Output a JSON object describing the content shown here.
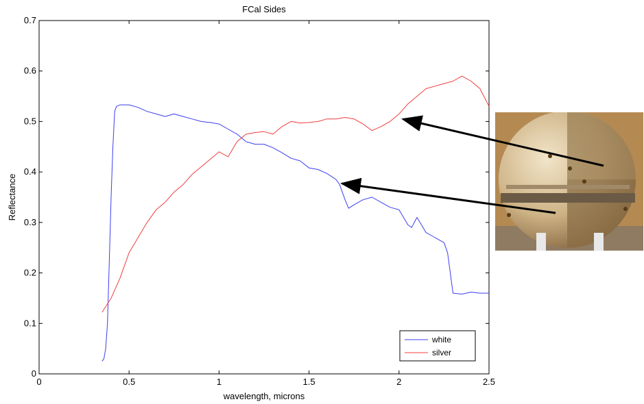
{
  "chart_data": {
    "type": "line",
    "title": "FCal Sides",
    "xlabel": "wavelength, microns",
    "ylabel": "Reflectance",
    "xlim": [
      0,
      2.5
    ],
    "ylim": [
      0,
      0.7
    ],
    "xticks": [
      "0",
      "0.5",
      "1",
      "1.5",
      "2",
      "2.5"
    ],
    "yticks": [
      "0",
      "0.1",
      "0.2",
      "0.3",
      "0.4",
      "0.5",
      "0.6",
      "0.7"
    ],
    "grid": false,
    "legend_position": "bottom-right",
    "series": [
      {
        "name": "white",
        "color": "#3c3cf0",
        "x": [
          0.35,
          0.36,
          0.37,
          0.38,
          0.39,
          0.4,
          0.41,
          0.42,
          0.43,
          0.45,
          0.5,
          0.55,
          0.6,
          0.65,
          0.7,
          0.75,
          0.8,
          0.85,
          0.9,
          0.95,
          1.0,
          1.05,
          1.1,
          1.15,
          1.2,
          1.25,
          1.3,
          1.35,
          1.4,
          1.45,
          1.5,
          1.55,
          1.6,
          1.65,
          1.67,
          1.7,
          1.72,
          1.75,
          1.8,
          1.85,
          1.9,
          1.95,
          2.0,
          2.05,
          2.07,
          2.1,
          2.15,
          2.2,
          2.25,
          2.27,
          2.3,
          2.35,
          2.4,
          2.45,
          2.5
        ],
        "values": [
          0.025,
          0.03,
          0.05,
          0.1,
          0.22,
          0.35,
          0.45,
          0.52,
          0.53,
          0.533,
          0.533,
          0.528,
          0.52,
          0.515,
          0.51,
          0.515,
          0.51,
          0.505,
          0.5,
          0.498,
          0.495,
          0.485,
          0.475,
          0.46,
          0.455,
          0.455,
          0.448,
          0.438,
          0.427,
          0.422,
          0.408,
          0.405,
          0.397,
          0.385,
          0.375,
          0.345,
          0.328,
          0.335,
          0.345,
          0.35,
          0.34,
          0.33,
          0.325,
          0.295,
          0.29,
          0.31,
          0.28,
          0.27,
          0.26,
          0.24,
          0.16,
          0.158,
          0.162,
          0.16,
          0.16
        ]
      },
      {
        "name": "silver",
        "color": "#f03c3c",
        "x": [
          0.35,
          0.4,
          0.45,
          0.5,
          0.55,
          0.6,
          0.65,
          0.7,
          0.75,
          0.8,
          0.85,
          0.9,
          0.95,
          1.0,
          1.05,
          1.1,
          1.15,
          1.2,
          1.25,
          1.3,
          1.35,
          1.4,
          1.45,
          1.5,
          1.55,
          1.6,
          1.65,
          1.7,
          1.75,
          1.8,
          1.85,
          1.9,
          1.95,
          2.0,
          2.05,
          2.1,
          2.15,
          2.2,
          2.25,
          2.3,
          2.35,
          2.4,
          2.45,
          2.5
        ],
        "values": [
          0.122,
          0.15,
          0.19,
          0.24,
          0.27,
          0.3,
          0.325,
          0.34,
          0.36,
          0.375,
          0.395,
          0.41,
          0.425,
          0.44,
          0.43,
          0.46,
          0.475,
          0.478,
          0.48,
          0.475,
          0.49,
          0.5,
          0.497,
          0.498,
          0.5,
          0.505,
          0.505,
          0.508,
          0.505,
          0.495,
          0.482,
          0.49,
          0.5,
          0.515,
          0.535,
          0.55,
          0.565,
          0.57,
          0.575,
          0.58,
          0.59,
          0.58,
          0.565,
          0.53
        ]
      }
    ]
  },
  "photo": {
    "label": "fcal-sphere-photo",
    "colors": {
      "background": "#b48a52",
      "sphere": "#d9c299",
      "band": "#6b5a45"
    }
  }
}
